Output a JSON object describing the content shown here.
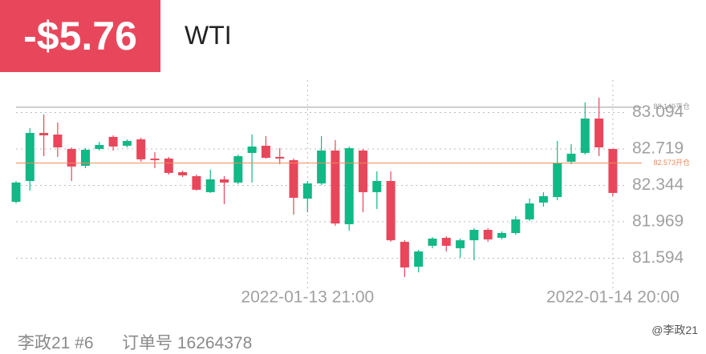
{
  "header": {
    "value": "-$5.76",
    "symbol": "WTI"
  },
  "chart_data": {
    "type": "candlestick",
    "categories": [
      null,
      null,
      null,
      null,
      null,
      null,
      null,
      null,
      null,
      null,
      null,
      null,
      null,
      null,
      null,
      null,
      null,
      null,
      null,
      null,
      null,
      "2022-01-13 21:00",
      null,
      null,
      null,
      null,
      null,
      null,
      null,
      null,
      null,
      null,
      null,
      null,
      null,
      null,
      null,
      null,
      null,
      null,
      null,
      null,
      null,
      "2022-01-14 20:00"
    ],
    "open": [
      82.175,
      82.389,
      82.884,
      82.867,
      82.719,
      82.546,
      82.719,
      82.843,
      82.752,
      82.818,
      82.62,
      82.62,
      82.48,
      82.439,
      82.274,
      82.406,
      82.373,
      82.678,
      82.752,
      82.637,
      82.604,
      82.208,
      82.364,
      82.703,
      81.944,
      82.703,
      82.274,
      82.389,
      81.763,
      81.507,
      81.722,
      81.804,
      81.697,
      81.779,
      81.886,
      81.804,
      81.853,
      81.994,
      82.167,
      82.224,
      82.587,
      82.678,
      83.032,
      82.719
    ],
    "high": [
      82.389,
      82.933,
      83.073,
      82.991,
      82.735,
      82.727,
      82.793,
      82.859,
      82.818,
      82.834,
      82.686,
      82.637,
      82.496,
      82.455,
      82.505,
      82.439,
      82.661,
      82.867,
      82.851,
      82.727,
      82.62,
      82.389,
      82.851,
      82.81,
      82.744,
      82.719,
      82.488,
      82.488,
      81.779,
      81.68,
      81.812,
      81.82,
      81.796,
      81.903,
      81.903,
      81.87,
      82.027,
      82.208,
      82.274,
      82.801,
      82.768,
      83.197,
      83.247,
      82.719
    ],
    "low": [
      82.158,
      82.29,
      82.645,
      82.637,
      82.389,
      82.521,
      82.703,
      82.703,
      82.735,
      82.587,
      82.521,
      82.455,
      82.43,
      82.29,
      82.266,
      82.15,
      82.356,
      82.373,
      82.62,
      82.562,
      82.043,
      82.068,
      82.348,
      81.928,
      81.878,
      82.068,
      82.101,
      81.763,
      81.4,
      81.449,
      81.697,
      81.664,
      81.598,
      81.573,
      81.763,
      81.788,
      81.837,
      81.977,
      82.125,
      82.191,
      82.562,
      82.661,
      82.645,
      82.233
    ],
    "close": [
      82.373,
      82.884,
      82.859,
      82.735,
      82.538,
      82.711,
      82.76,
      82.744,
      82.801,
      82.612,
      82.604,
      82.472,
      82.447,
      82.299,
      82.406,
      82.373,
      82.645,
      82.744,
      82.628,
      82.62,
      82.216,
      82.364,
      82.703,
      81.952,
      82.727,
      82.274,
      82.389,
      81.779,
      81.499,
      81.664,
      81.796,
      81.722,
      81.779,
      81.886,
      81.788,
      81.853,
      81.994,
      82.158,
      82.233,
      82.571,
      82.67,
      83.032,
      82.735,
      82.266
    ],
    "up_color": "#12b886",
    "down_color": "#e8475b",
    "ylim": [
      81.383,
      83.428
    ],
    "yticks": [
      83.094,
      82.719,
      82.344,
      81.969,
      81.594
    ],
    "grid": true,
    "ref_lines": [
      {
        "value": 83.149,
        "label": "83.149平仓",
        "color": "#9a9a9a"
      },
      {
        "value": 82.573,
        "label": "82.573开仓",
        "color": "#ef8a5a"
      }
    ]
  },
  "footer": {
    "account": "李政21 #6",
    "order": "订单号 16264378",
    "watermark": "@李政21"
  }
}
